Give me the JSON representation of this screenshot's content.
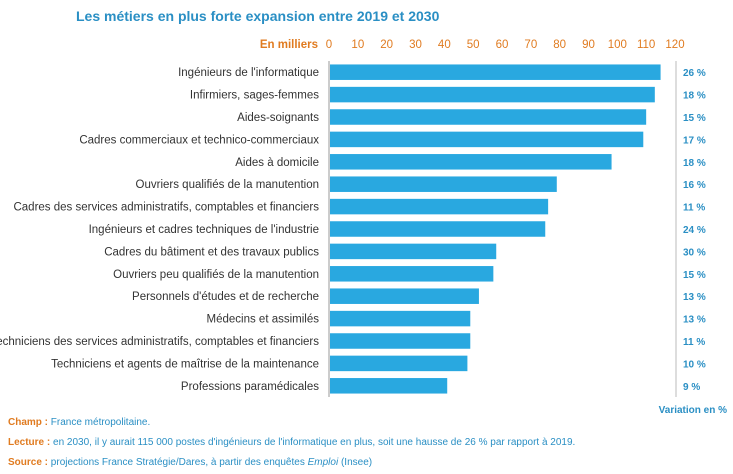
{
  "chart_data": {
    "type": "bar",
    "orientation": "horizontal",
    "title": "Les métiers en plus forte expansion entre 2019 et 2030",
    "unit_label": "En milliers",
    "xlim": [
      0,
      120
    ],
    "xticks": [
      0,
      10,
      20,
      30,
      40,
      50,
      60,
      70,
      80,
      90,
      100,
      110,
      120
    ],
    "categories": [
      "Ingénieurs de l'informatique",
      "Infirmiers, sages-femmes",
      "Aides-soignants",
      "Cadres commerciaux et technico-commerciaux",
      "Aides à domicile",
      "Ouvriers qualifiés de la manutention",
      "Cadres des services administratifs, comptables et financiers",
      "Ingénieurs et cadres techniques de l'industrie",
      "Cadres du bâtiment et des travaux publics",
      "Ouvriers peu qualifiés de la manutention",
      "Personnels d'études et de recherche",
      "Médecins et assimilés",
      "Techniciens des services administratifs, comptables et financiers",
      "Techniciens et agents de maîtrise de la maintenance",
      "Professions paramédicales"
    ],
    "values": [
      115,
      113,
      110,
      109,
      98,
      79,
      76,
      75,
      58,
      57,
      52,
      49,
      49,
      48,
      41
    ],
    "variation_labels": [
      "26 %",
      "18 %",
      "15 %",
      "17 %",
      "18 %",
      "16 %",
      "11 %",
      "24 %",
      "30 %",
      "15 %",
      "13 %",
      "13 %",
      "11 %",
      "10 %",
      "9 %"
    ],
    "variation_title": "Variation en %",
    "bar_color": "#29a8e0",
    "grid": false
  },
  "notes": {
    "champ_label": "Champ :",
    "champ_text": "France métropolitaine.",
    "lecture_label": "Lecture :",
    "lecture_text": "en 2030, il y aurait 115 000 postes d'ingénieurs de l'informatique en plus, soit une hausse de 26 % par rapport à 2019.",
    "source_label": "Source :",
    "source_text_1": "projections France Stratégie/Dares, à partir des enquêtes ",
    "source_text_italic": "Emploi",
    "source_text_2": " (Insee)"
  }
}
